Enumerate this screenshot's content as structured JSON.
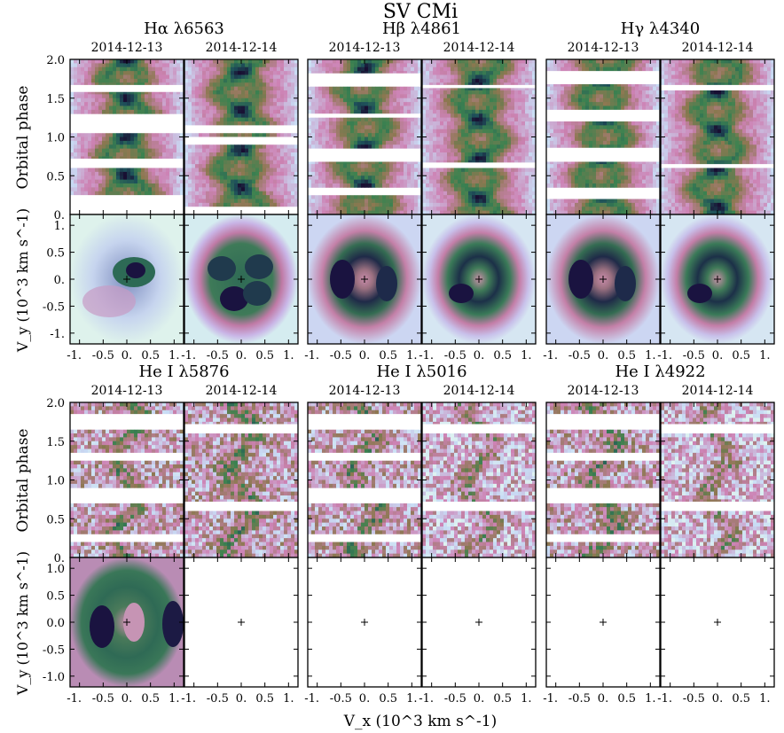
{
  "chart_data": {
    "type": "heatmap",
    "title": "SV CMi",
    "xlabel": "V_x (10^3 km s^-1)",
    "trail_ylabel": "Orbital phase",
    "tomo_ylabel": "V_y (10^3 km s^-1)",
    "colormap": "cubehelix-like",
    "phase_range": [
      0,
      2.0
    ],
    "velocity_range": [
      -1.2,
      1.2
    ],
    "phase_ticks": [
      "0.",
      "0.5",
      "1.0",
      "1.5",
      "2.0"
    ],
    "x_ticks_a": [
      "-1.",
      "-0.5",
      "0.",
      "0.5",
      "1."
    ],
    "x_ticks_b": [
      "-1.",
      "-0.5",
      "0.",
      "0.5",
      "1."
    ],
    "vy_ticks_top": [
      "1.",
      "0.5",
      "0.",
      "-0.5",
      "-1."
    ],
    "vy_ticks_bottom": [
      "1.0",
      "0.5",
      "0.0",
      "-0.5",
      "-1.0"
    ],
    "lines": [
      {
        "name": "Hα λ6563",
        "dates": [
          "2014-12-13",
          "2014-12-14"
        ],
        "gaps": [
          [
            [
              0.0,
              0.25
            ],
            [
              0.62,
              0.72
            ],
            [
              1.05,
              1.28
            ],
            [
              1.58,
              1.67
            ]
          ],
          [
            [
              0.05,
              0.1
            ],
            [
              0.0,
              0.03
            ],
            [
              0.92,
              1.0
            ],
            [
              1.05,
              1.09
            ],
            [
              1.12,
              1.15
            ]
          ]
        ],
        "tomo": [
          "blob",
          "quad"
        ]
      },
      {
        "name": "Hβ λ4861",
        "dates": [
          "2014-12-13",
          "2014-12-14"
        ],
        "gaps": [
          [
            [
              0.25,
              0.33
            ],
            [
              0.68,
              0.85
            ],
            [
              1.25,
              1.3
            ],
            [
              1.65,
              1.82
            ]
          ],
          [
            [
              0.6,
              0.67
            ],
            [
              1.63,
              1.67
            ]
          ]
        ],
        "tomo": [
          "ring2",
          "ring"
        ]
      },
      {
        "name": "Hγ λ4340",
        "dates": [
          "2014-12-13",
          "2014-12-14"
        ],
        "gaps": [
          [
            [
              0.2,
              0.33
            ],
            [
              0.68,
              0.86
            ],
            [
              1.22,
              1.35
            ],
            [
              1.68,
              1.85
            ]
          ],
          [
            [
              0.6,
              0.65
            ],
            [
              1.62,
              1.67
            ]
          ]
        ],
        "tomo": [
          "ring2",
          "ring"
        ]
      },
      {
        "name": "He I λ5876",
        "dates": [
          "2014-12-13",
          "2014-12-14"
        ],
        "gaps": [
          [
            [
              0.2,
              0.3
            ],
            [
              0.7,
              0.88
            ],
            [
              1.25,
              1.35
            ],
            [
              1.65,
              1.85
            ]
          ],
          [
            [
              0.6,
              0.72
            ],
            [
              1.6,
              1.72
            ]
          ]
        ],
        "tomo": [
          "heI",
          "empty"
        ]
      },
      {
        "name": "He I λ5016",
        "dates": [
          "2014-12-13",
          "2014-12-14"
        ],
        "gaps": [
          [
            [
              0.2,
              0.3
            ],
            [
              0.7,
              0.88
            ],
            [
              1.25,
              1.35
            ],
            [
              1.65,
              1.85
            ]
          ],
          [
            [
              0.6,
              0.72
            ],
            [
              1.6,
              1.72
            ]
          ]
        ],
        "tomo": [
          "empty",
          "empty"
        ]
      },
      {
        "name": "He I λ4922",
        "dates": [
          "2014-12-13",
          "2014-12-14"
        ],
        "gaps": [
          [
            [
              0.2,
              0.3
            ],
            [
              0.7,
              0.88
            ],
            [
              1.25,
              1.35
            ],
            [
              1.65,
              1.85
            ]
          ],
          [
            [
              0.6,
              0.72
            ],
            [
              1.6,
              1.72
            ]
          ]
        ],
        "tomo": [
          "empty",
          "empty"
        ]
      }
    ]
  }
}
